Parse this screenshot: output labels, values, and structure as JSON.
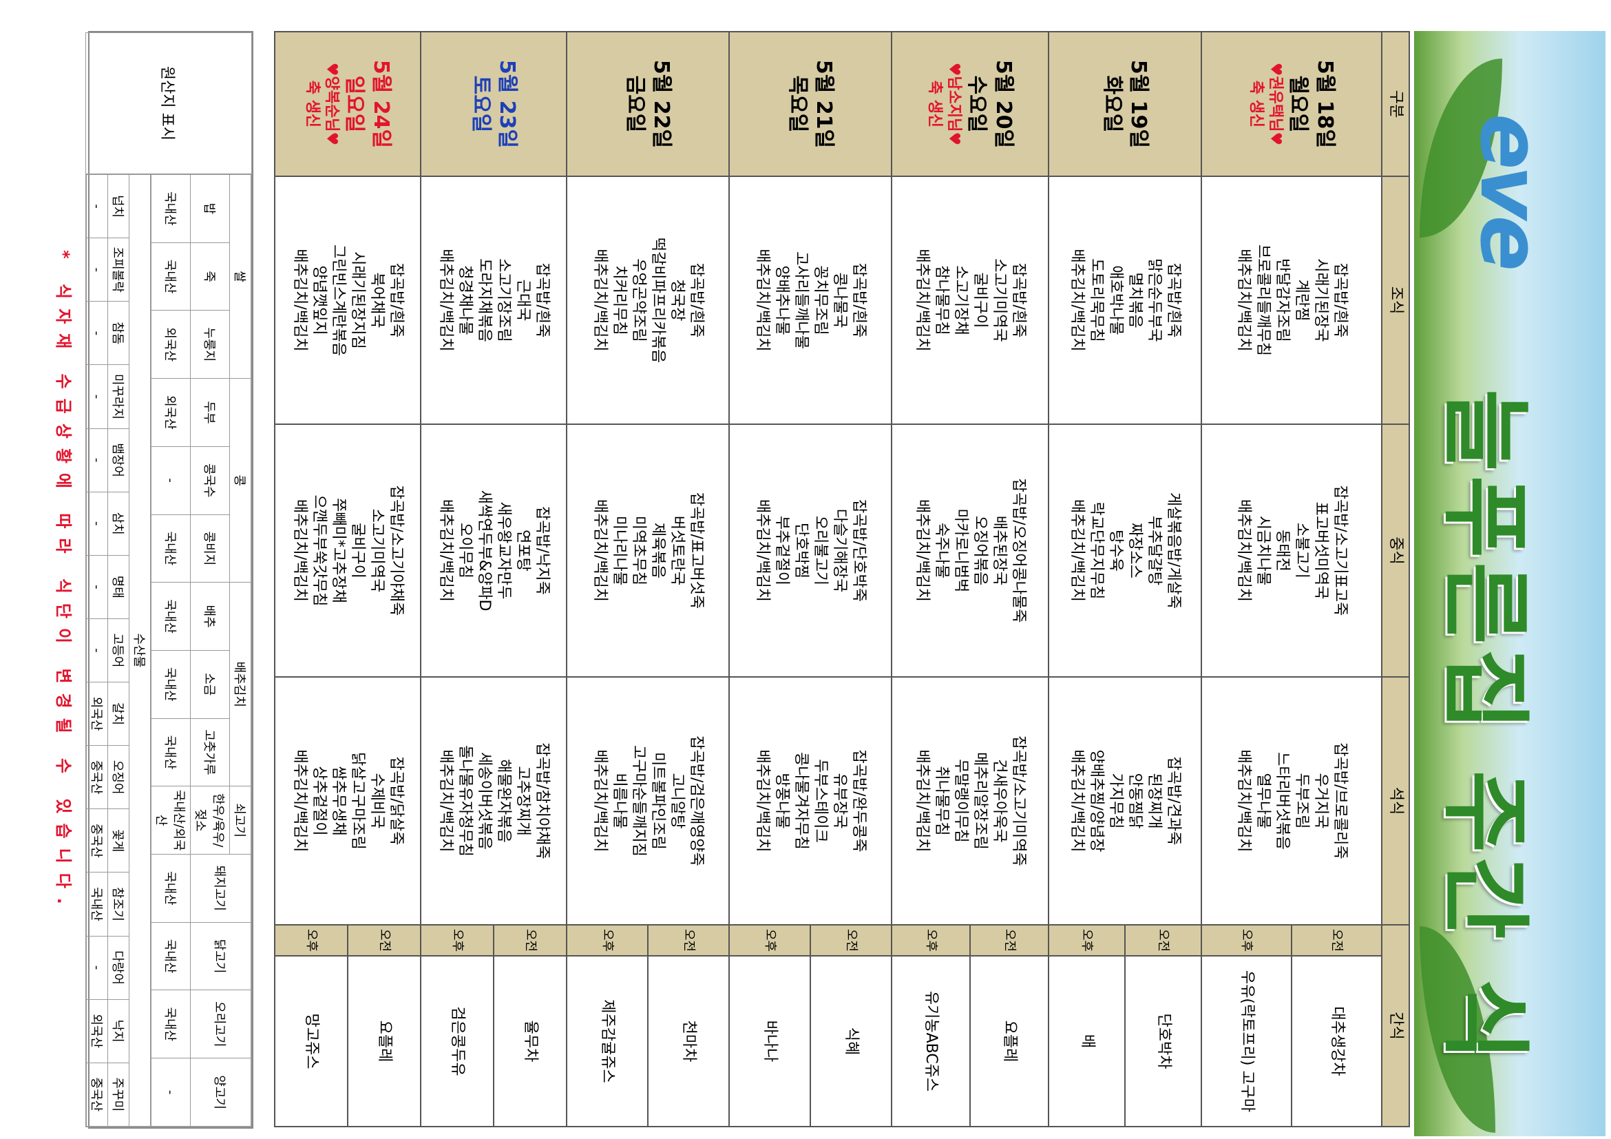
{
  "header": {
    "logo": "eve",
    "title": "늘푸른집 주간 식단표"
  },
  "table": {
    "columns": [
      "구분",
      "조식",
      "중식",
      "석식",
      "간식"
    ],
    "rows": [
      {
        "date": "5월 18일",
        "weekday": "월요일",
        "note": {
          "name": "♥권유택님♥",
          "text": "축 생신"
        },
        "breakfast": [
          "잡곡밥/흰죽",
          "시래기된장국",
          "계란찜",
          "반달감자조림",
          "브로콜리들깨무침",
          "배추김치/백김치"
        ],
        "lunch": [
          "잡곡밥/소고기표고죽",
          "표고버섯미역국",
          "소불고기",
          "동태전",
          "시금치나물",
          "배추김치/백김치"
        ],
        "dinner": [
          "잡곡밥/브로콜리죽",
          "우거지국",
          "두부조림",
          "느타리버섯볶음",
          "열무나물",
          "배추김치/백김치"
        ],
        "snacks": [
          {
            "time": "오전",
            "item": "대추생강차"
          },
          {
            "time": "오후",
            "item": "우유(락토프리) 고구마"
          }
        ]
      },
      {
        "date": "5월 19일",
        "weekday": "화요일",
        "breakfast": [
          "잡곡밥/흰죽",
          "맑은순두부국",
          "멸치볶음",
          "애호박나물",
          "도토리묵무침",
          "배추김치/백김치"
        ],
        "lunch": [
          "게살볶음밥/게살죽",
          "부추달걀탕",
          "짜장소스",
          "탕수육",
          "락교단무지무침",
          "배추김치/백김치"
        ],
        "dinner": [
          "잡곡밥/견과죽",
          "된장찌개",
          "안동찜닭",
          "가지무침",
          "양배추찜/양념장",
          "배추김치/백김치"
        ],
        "snacks": [
          {
            "time": "오전",
            "item": "단호박차"
          },
          {
            "time": "오후",
            "item": "배"
          }
        ]
      },
      {
        "date": "5월 20일",
        "weekday": "수요일",
        "note": {
          "name": "♥남소지님♥",
          "text": "축 생신"
        },
        "breakfast": [
          "잡곡밥/흰죽",
          "소고기미역국",
          "굴비구이",
          "소고기장채",
          "참나물무침",
          "배추김치/백김치"
        ],
        "lunch": [
          "잡곡밥/오징어콩나물죽",
          "배추된장국",
          "오징어볶음",
          "마카로니범벅",
          "숙주나물",
          "배추김치/백김치"
        ],
        "dinner": [
          "잡곡밥/소고기미역죽",
          "건새우아욱국",
          "메추리알장조림",
          "무말랭이무침",
          "취나물무침",
          "배추김치/백김치"
        ],
        "snacks": [
          {
            "time": "오전",
            "item": "요플레"
          },
          {
            "time": "오후",
            "item": "유기농ABC쥬스"
          }
        ]
      },
      {
        "date": "5월 21일",
        "weekday": "목요일",
        "breakfast": [
          "잡곡밥/흰죽",
          "콩나물국",
          "꽁치무조림",
          "고사리들깨나물",
          "양배추나물",
          "배추김치/백김치"
        ],
        "lunch": [
          "잡곡밥/단호박죽",
          "다슬기해장국",
          "오리불고기",
          "단호박찜",
          "부추겉절이",
          "배추김치/백김치"
        ],
        "dinner": [
          "잡곡밥/완두콩죽",
          "유부장국",
          "두부스테이크",
          "콩나물겨자무침",
          "방풍나물",
          "배추김치/백김치"
        ],
        "snacks": [
          {
            "time": "오전",
            "item": "식혜"
          },
          {
            "time": "오후",
            "item": "바나나"
          }
        ]
      },
      {
        "date": "5월 22일",
        "weekday": "금요일",
        "breakfast": [
          "잡곡밥/흰죽",
          "청국장",
          "떡갈비파프리카볶음",
          "우엉곤약조림",
          "치커리무침",
          "배추김치/백김치"
        ],
        "lunch": [
          "잡곡밥/표고버섯죽",
          "버섯토란국",
          "제육볶음",
          "미역초무침",
          "미나리나물",
          "배추김치/백김치"
        ],
        "dinner": [
          "잡곡밥/검은깨영양죽",
          "고니알탕",
          "미트볼파인조림",
          "고구마순들깨지짐",
          "비름나물",
          "배추김치/백김치"
        ],
        "snacks": [
          {
            "time": "오전",
            "item": "천마차"
          },
          {
            "time": "오후",
            "item": "제주감귤쥬스"
          }
        ]
      },
      {
        "date": "5월 23일",
        "weekday": "토요일",
        "breakfast": [
          "잡곡밥/흰죽",
          "근대국",
          "소고기장조림",
          "도라지채볶음",
          "청경채나물",
          "배추김치/백김치"
        ],
        "lunch": [
          "잡곡밥/낙지죽",
          "연포탕",
          "새우왕교자만두",
          "새싹연두부&양파D",
          "오이무침",
          "배추김치/백김치"
        ],
        "dinner": [
          "잡곡밥/참치야채죽",
          "고추장찌개",
          "해물완자볶음",
          "세송이버섯볶음",
          "돌나물유자청무침",
          "배추김치/백김치"
        ],
        "snacks": [
          {
            "time": "오전",
            "item": "율무차"
          },
          {
            "time": "오후",
            "item": "검은콩두유"
          }
        ]
      },
      {
        "date": "5월 24일",
        "weekday": "일요일",
        "note": {
          "name": "♥양복순님♥",
          "text": "축 생신"
        },
        "breakfast": [
          "잡곡밥/흰죽",
          "북어채국",
          "시래기된장지짐",
          "그린빈스계란볶음",
          "양념깻잎지",
          "배추김치/백김치"
        ],
        "lunch": [
          "잡곡밥/소고기야채죽",
          "소고기미역국",
          "굴비구이",
          "쭈빼미*고추장채",
          "으깬두부쑥갓무침",
          "배추김치/백김치"
        ],
        "dinner": [
          "잡곡밥/닭살죽",
          "수제비국",
          "닭살고구마조림",
          "쌈추무생채",
          "상추겉절이",
          "배추김치/백김치"
        ],
        "snacks": [
          {
            "time": "오전",
            "item": "요플레"
          },
          {
            "time": "오후",
            "item": "망고쥬스"
          }
        ]
      }
    ]
  },
  "origin": {
    "label": "원산지 표시",
    "groups": [
      {
        "name": "쌀",
        "items": [
          {
            "name": "밥",
            "origin": "국내산"
          },
          {
            "name": "죽",
            "origin": "국내산"
          },
          {
            "name": "누룽지",
            "origin": "외국산"
          }
        ]
      },
      {
        "name": "콩",
        "items": [
          {
            "name": "두부",
            "origin": "외국산"
          },
          {
            "name": "콩국수",
            "origin": "-"
          },
          {
            "name": "콩비지",
            "origin": "국내산"
          }
        ]
      },
      {
        "name": "배추김치",
        "items": [
          {
            "name": "배추",
            "origin": "국내산"
          },
          {
            "name": "소금",
            "origin": "국내산"
          },
          {
            "name": "고춧가루",
            "origin": "국내산"
          }
        ]
      },
      {
        "name": "쇠고기",
        "items": [
          {
            "name": "한우/육우/젖소",
            "origin": "국내산/외국산"
          }
        ]
      }
    ],
    "singles": [
      {
        "name": "돼지고기",
        "origin": "국내산"
      },
      {
        "name": "닭고기",
        "origin": "국내산"
      },
      {
        "name": "오리고기",
        "origin": "국내산"
      },
      {
        "name": "양고기",
        "origin": "-"
      }
    ],
    "seafood_label": "수산물",
    "seafood": [
      {
        "name": "넙치",
        "origin": "-"
      },
      {
        "name": "조피볼락",
        "origin": "-"
      },
      {
        "name": "참돔",
        "origin": "-"
      },
      {
        "name": "미꾸라지",
        "origin": "-"
      },
      {
        "name": "뱀장어",
        "origin": "-"
      },
      {
        "name": "삼치",
        "origin": "-"
      },
      {
        "name": "명태",
        "origin": "-"
      },
      {
        "name": "고등어",
        "origin": "-"
      },
      {
        "name": "갈치",
        "origin": "외국산"
      },
      {
        "name": "오징어",
        "origin": "중국산"
      },
      {
        "name": "꽃게",
        "origin": "중국산"
      },
      {
        "name": "참조기",
        "origin": "국내산"
      },
      {
        "name": "다랑어",
        "origin": "-"
      },
      {
        "name": "낙지",
        "origin": "외국산"
      },
      {
        "name": "주꾸미",
        "origin": "중국산"
      }
    ]
  },
  "footer": "* 식자재 수급상황에 따라 식단이 변경될 수 있습니다."
}
